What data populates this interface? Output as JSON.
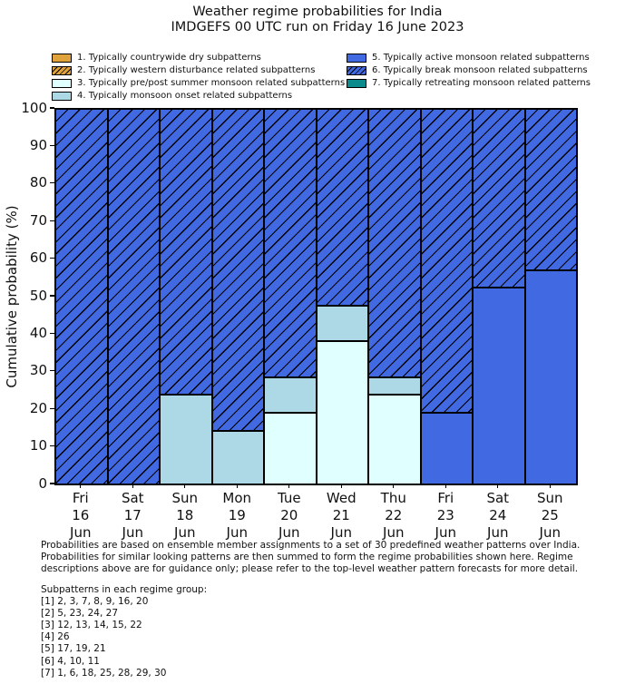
{
  "title": {
    "line1": "Weather regime probabilities for India",
    "line2": "IMDGEFS 00 UTC run on Friday 16 June 2023"
  },
  "legend": {
    "items": [
      {
        "label": "1. Typically countrywide dry subpatterns",
        "color": "#E0A33C",
        "hatch": false
      },
      {
        "label": "2. Typically western disturbance related subpatterns",
        "color": "#E0A33C",
        "hatch": true
      },
      {
        "label": "3. Typically pre/post summer monsoon related subpatterns",
        "color": "#E0FFFF",
        "hatch": false
      },
      {
        "label": "4. Typically monsoon onset related subpatterns",
        "color": "#ADD8E6",
        "hatch": false
      },
      {
        "label": "5. Typically active monsoon related subpatterns",
        "color": "#4169E1",
        "hatch": false
      },
      {
        "label": "6. Typically break monsoon related subpatterns",
        "color": "#4169E1",
        "hatch": true
      },
      {
        "label": "7. Typically retreating monsoon related patterns",
        "color": "#0B8B8B",
        "hatch": false
      }
    ]
  },
  "chart_data": {
    "type": "bar",
    "stacked": true,
    "title": "Weather regime probabilities for India",
    "subtitle": "IMDGEFS 00 UTC run on Friday 16 June 2023",
    "xlabel": "",
    "ylabel": "Cumulative probability (%)",
    "ylim": [
      0,
      100
    ],
    "yticks": [
      0,
      10,
      20,
      30,
      40,
      50,
      60,
      70,
      80,
      90,
      100
    ],
    "grid": false,
    "legend_position": "top",
    "categories": [
      {
        "day": "Fri",
        "date": "16",
        "month": "Jun"
      },
      {
        "day": "Sat",
        "date": "17",
        "month": "Jun"
      },
      {
        "day": "Sun",
        "date": "18",
        "month": "Jun"
      },
      {
        "day": "Mon",
        "date": "19",
        "month": "Jun"
      },
      {
        "day": "Tue",
        "date": "20",
        "month": "Jun"
      },
      {
        "day": "Wed",
        "date": "21",
        "month": "Jun"
      },
      {
        "day": "Thu",
        "date": "22",
        "month": "Jun"
      },
      {
        "day": "Fri",
        "date": "23",
        "month": "Jun"
      },
      {
        "day": "Sat",
        "date": "24",
        "month": "Jun"
      },
      {
        "day": "Sun",
        "date": "25",
        "month": "Jun"
      }
    ],
    "series": [
      {
        "name": "1. Typically countrywide dry subpatterns",
        "color": "#E0A33C",
        "hatch": false,
        "values": [
          0,
          0,
          0,
          0,
          0,
          0,
          0,
          0,
          0,
          0
        ]
      },
      {
        "name": "2. Typically western disturbance related subpatterns",
        "color": "#E0A33C",
        "hatch": true,
        "values": [
          0,
          0,
          0,
          0,
          0,
          0,
          0,
          0,
          0,
          0
        ]
      },
      {
        "name": "3. Typically pre/post summer monsoon related subpatterns",
        "color": "#E0FFFF",
        "hatch": false,
        "values": [
          0,
          0,
          0,
          0,
          19.0,
          38.1,
          23.8,
          0,
          0,
          0
        ]
      },
      {
        "name": "4. Typically monsoon onset related subpatterns",
        "color": "#ADD8E6",
        "hatch": false,
        "values": [
          0,
          0,
          23.8,
          14.3,
          9.5,
          9.5,
          4.8,
          0,
          0,
          0
        ]
      },
      {
        "name": "5. Typically active monsoon related subpatterns",
        "color": "#4169E1",
        "hatch": false,
        "values": [
          0,
          0,
          0,
          0,
          0,
          0,
          0,
          19.0,
          52.4,
          57.1
        ]
      },
      {
        "name": "6. Typically break monsoon related subpatterns",
        "color": "#4169E1",
        "hatch": true,
        "values": [
          100,
          100,
          76.2,
          85.7,
          71.5,
          52.4,
          71.4,
          81.0,
          47.6,
          42.9
        ]
      },
      {
        "name": "7. Typically retreating monsoon related patterns",
        "color": "#0B8B8B",
        "hatch": false,
        "values": [
          0,
          0,
          0,
          0,
          0,
          0,
          0,
          0,
          0,
          0
        ]
      }
    ]
  },
  "notes_lines": [
    "Probabilities are based on ensemble member assignments to a set of 30 predefined weather patterns over India.",
    "Probabilities for similar looking patterns are then summed to form the regime probabilities shown here. Regime",
    "descriptions above are for guidance only; please refer to the top-level weather pattern forecasts for more detail."
  ],
  "subpatterns": {
    "heading": "Subpatterns in each regime group:",
    "groups": [
      "[1] 2, 3, 7, 8, 9, 16, 20",
      "[2] 5, 23, 24, 27",
      "[3] 12, 13, 14, 15, 22",
      "[4] 26",
      "[5] 17, 19, 21",
      "[6] 4, 10, 11",
      "[7] 1, 6, 18, 25, 28, 29, 30"
    ]
  }
}
